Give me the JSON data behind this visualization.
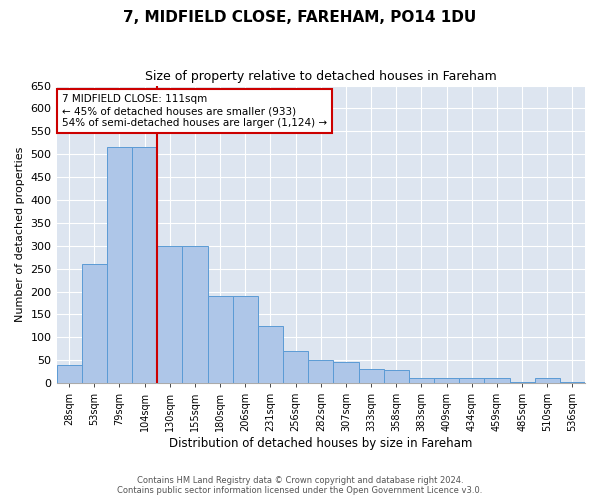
{
  "title": "7, MIDFIELD CLOSE, FAREHAM, PO14 1DU",
  "subtitle": "Size of property relative to detached houses in Fareham",
  "xlabel": "Distribution of detached houses by size in Fareham",
  "ylabel": "Number of detached properties",
  "categories": [
    "28sqm",
    "53sqm",
    "79sqm",
    "104sqm",
    "130sqm",
    "155sqm",
    "180sqm",
    "206sqm",
    "231sqm",
    "256sqm",
    "282sqm",
    "307sqm",
    "333sqm",
    "358sqm",
    "383sqm",
    "409sqm",
    "434sqm",
    "459sqm",
    "485sqm",
    "510sqm",
    "536sqm"
  ],
  "values": [
    40,
    260,
    515,
    515,
    300,
    300,
    190,
    190,
    125,
    70,
    50,
    45,
    30,
    28,
    10,
    10,
    10,
    10,
    3,
    10,
    3
  ],
  "bar_color": "#aec6e8",
  "bar_edge_color": "#5b9bd5",
  "vline_color": "#cc0000",
  "vline_x": 3.5,
  "annotation_text": "7 MIDFIELD CLOSE: 111sqm\n← 45% of detached houses are smaller (933)\n54% of semi-detached houses are larger (1,124) →",
  "annotation_box_color": "#ffffff",
  "annotation_box_edge": "#cc0000",
  "ylim": [
    0,
    650
  ],
  "yticks": [
    0,
    50,
    100,
    150,
    200,
    250,
    300,
    350,
    400,
    450,
    500,
    550,
    600,
    650
  ],
  "background_color": "#dde5f0",
  "footer_line1": "Contains HM Land Registry data © Crown copyright and database right 2024.",
  "footer_line2": "Contains public sector information licensed under the Open Government Licence v3.0."
}
